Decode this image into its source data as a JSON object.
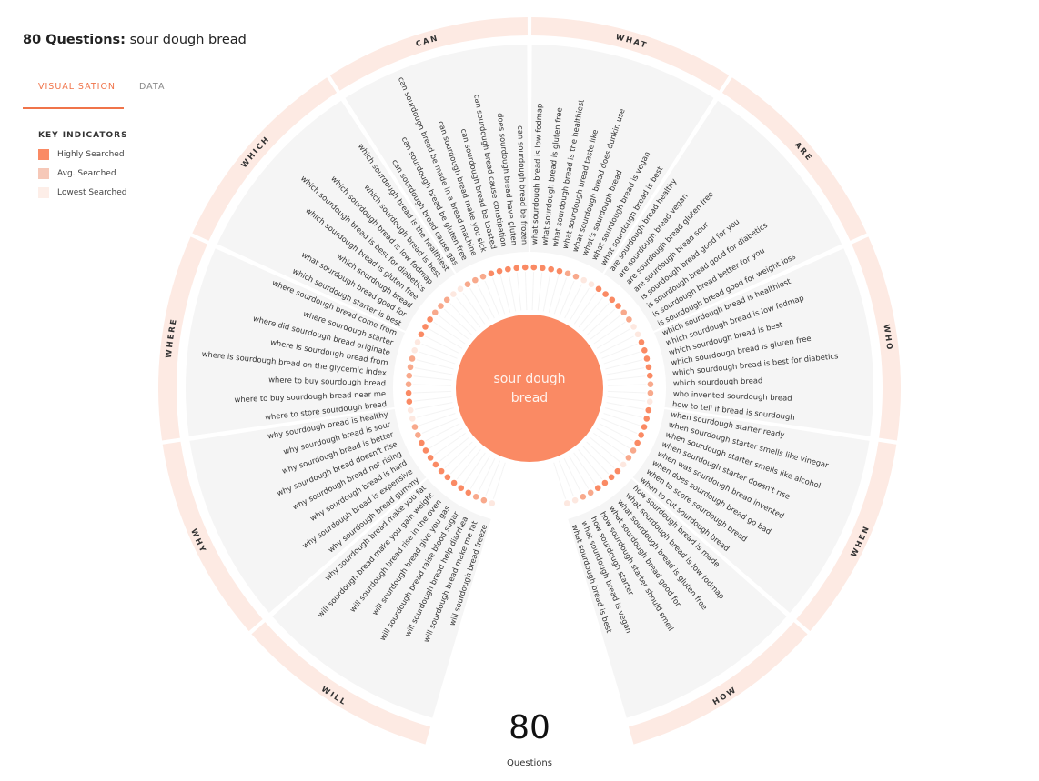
{
  "header": {
    "count_label": "80 Questions:",
    "keyword": "sour dough bread"
  },
  "tabs": [
    {
      "label": "VISUALISATION",
      "active": true
    },
    {
      "label": "DATA",
      "active": false
    }
  ],
  "legend": {
    "title": "KEY INDICATORS",
    "items": [
      {
        "label": "Highly Searched",
        "color": "#fa8a64"
      },
      {
        "label": "Avg. Searched",
        "color": "#f6c8b8"
      },
      {
        "label": "Lowest Searched",
        "color": "#fdeee8"
      }
    ]
  },
  "center": {
    "line1": "sour dough",
    "line2": "bread",
    "color": "#fa8a64"
  },
  "total": {
    "value": "80",
    "label": "Questions"
  },
  "colors": {
    "ring": "#fdeae3",
    "sector_bg": "#f5f5f5",
    "high": "#fa8a64",
    "mid": "#f8b9a2",
    "low": "#fde8e0"
  },
  "chart_data": {
    "type": "radial-sunburst",
    "title": "80 Questions: sour dough bread",
    "center": "sour dough bread",
    "total": 80,
    "legend": [
      "Highly Searched",
      "Avg. Searched",
      "Lowest Searched"
    ],
    "categories": [
      {
        "name": "CAN",
        "questions": [
          "can sourdough bread cause gas",
          "can sourdough bread be gluten free",
          "can sourdough bread be made in a bread machine",
          "can sourdough bread make you sick",
          "can sourdough bread be toasted",
          "can sourdough bread cause constipation",
          "does sourdough bread have gluten",
          "can sourdough bread be frozen"
        ]
      },
      {
        "name": "WHAT",
        "questions": [
          "what sourdough bread is low fodmap",
          "what sourdough bread is gluten free",
          "what sourdough bread is the healthiest",
          "what sourdough bread taste like",
          "what sourdough bread does dunkin use",
          "what's sourdough bread",
          "what sourdough bread is vegan",
          "what sourdough bread is best"
        ]
      },
      {
        "name": "ARE",
        "questions": [
          "are sourdough bread healthy",
          "are sourdough bread vegan",
          "are sourdough bread gluten free",
          "are sourdough bread sour",
          "is sourdough bread good for you",
          "is sourdough bread good for diabetics",
          "is sourdough bread better for you",
          "is sourdough bread good for weight loss"
        ]
      },
      {
        "name": "WHO",
        "questions": [
          "which sourdough bread is healthiest",
          "which sourdough bread is low fodmap",
          "which sourdough bread is best",
          "which sourdough bread is gluten free",
          "which sourdough bread is best for diabetics",
          "which sourdough bread",
          "who invented sourdough bread",
          "how to tell if bread is sourdough"
        ]
      },
      {
        "name": "WHEN",
        "questions": [
          "when sourdough starter ready",
          "when sourdough starter smells like vinegar",
          "when sourdough starter smells like alcohol",
          "when sourdough starter doesn't rise",
          "when was sourdough bread invented",
          "when does sourdough bread go bad",
          "when to score sourdough bread",
          "when to cut sourdough bread"
        ]
      },
      {
        "name": "HOW",
        "questions": [
          "how sourdough bread is made",
          "what sourdough bread is low fodmap",
          "what sourdough bread is gluten free",
          "what sourdough bread good for",
          "how sourdough starter should smell",
          "how sourdough starter",
          "what sourdough bread is vegan",
          "what sourdough bread is best"
        ]
      },
      {
        "name": "WILL",
        "questions": [
          "will sourdough bread freeze",
          "will sourdough bread make me fat",
          "will sourdough bread help diarrhea",
          "will sourdough bread raise blood sugar",
          "will sourdough bread give you gas",
          "will sourdough bread rise in the oven",
          "will sourdough bread make you gain weight",
          "why sourdough bread make you fat"
        ]
      },
      {
        "name": "WHY",
        "questions": [
          "why sourdough bread gummy",
          "why sourdough bread is expensive",
          "why sourdough bread is hard",
          "why sourdough bread not rising",
          "why sourdough bread doesn't rise",
          "why sourdough bread is better",
          "why sourdough bread is sour",
          "why sourdough bread is healthy"
        ]
      },
      {
        "name": "WHERE",
        "questions": [
          "where to store sourdough bread",
          "where to buy sourdough bread near me",
          "where to buy sourdough bread",
          "where is sourdough bread on the glycemic index",
          "where is sourdough bread from",
          "where did sourdough bread originate",
          "where sourdough starter",
          "where sourdough bread come from"
        ]
      },
      {
        "name": "WHICH",
        "questions": [
          "which sourdough starter is best",
          "what sourdough bread good for",
          "which sourdough bread",
          "which sourdough bread is gluten free",
          "which sourdough bread is best for diabetics",
          "which sourdough bread is low fodmap",
          "which sourdough bread is best",
          "which sourdough bread is the healthiest"
        ]
      }
    ],
    "dot_levels": [
      [
        2,
        2,
        2,
        3,
        3,
        3,
        3,
        3
      ],
      [
        3,
        3,
        3,
        3,
        2,
        2,
        1,
        1
      ],
      [
        3,
        3,
        3,
        3,
        2,
        2,
        1,
        1
      ],
      [
        3,
        3,
        3,
        3,
        3,
        2,
        2,
        1
      ],
      [
        3,
        3,
        3,
        3,
        3,
        2,
        2,
        1
      ],
      [
        3,
        3,
        3,
        3,
        2,
        2,
        1,
        1
      ],
      [
        1,
        2,
        2,
        3,
        3,
        3,
        3,
        3
      ],
      [
        3,
        3,
        3,
        3,
        2,
        2,
        1,
        1
      ],
      [
        3,
        3,
        2,
        2,
        2,
        2,
        1,
        1
      ],
      [
        3,
        3,
        3,
        2,
        2,
        2,
        1,
        1
      ]
    ]
  }
}
